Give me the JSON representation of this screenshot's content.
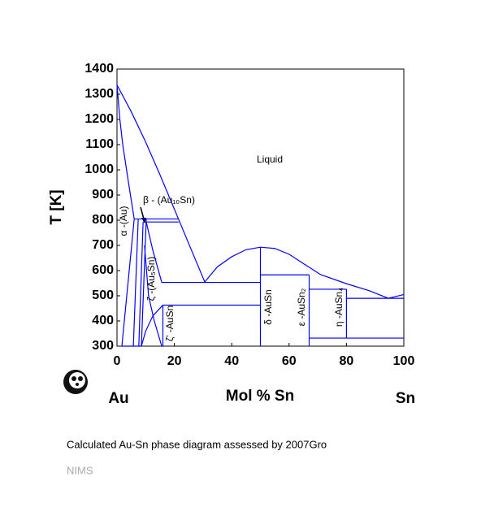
{
  "chart_data": {
    "type": "phase-diagram",
    "x_label": "Mol % Sn",
    "y_label": "T [K]",
    "left_element": "Au",
    "right_element": "Sn",
    "caption": "Calculated Au-Sn phase diagram assessed by 2007Gro",
    "source": "NIMS",
    "xlim": [
      0,
      100
    ],
    "ylim": [
      300,
      1400
    ],
    "xticks": [
      0,
      20,
      40,
      60,
      80,
      100
    ],
    "yticks": [
      300,
      400,
      500,
      600,
      700,
      800,
      900,
      1000,
      1100,
      1200,
      1300,
      1400
    ],
    "color": "#0000ff",
    "annotations": [
      "Liquid",
      "β - (Au₁₀Sn)",
      "α -(Au)",
      "ζ -(Au₅Sn)",
      "ζ' -AuSn",
      "δ -AuSn",
      "ε -AuSn₂",
      "η -AuSn₄"
    ],
    "boundaries": [
      {
        "x": [
          0,
          5,
          10,
          15,
          21.5,
          26,
          30.6
        ],
        "y": [
          1337,
          1230,
          1110,
          980,
          803,
          680,
          555
        ]
      },
      {
        "x": [
          0,
          1,
          2,
          4,
          6
        ],
        "y": [
          1337,
          1200,
          1100,
          950,
          805
        ]
      },
      {
        "x": [
          6,
          1.7
        ],
        "y": [
          805,
          300
        ]
      },
      {
        "x": [
          7.4,
          5.7
        ],
        "y": [
          805,
          300
        ]
      },
      {
        "x": [
          1.7,
          8.5
        ],
        "y": [
          300,
          300
        ]
      },
      {
        "x": [
          6,
          21.5
        ],
        "y": [
          805,
          805
        ]
      },
      {
        "x": [
          9.1,
          21.5
        ],
        "y": [
          793,
          793
        ]
      },
      {
        "x": [
          9.1,
          7.6
        ],
        "y": [
          793,
          300
        ]
      },
      {
        "x": [
          10.2,
          8.5
        ],
        "y": [
          805,
          300
        ]
      },
      {
        "x": [
          10.2,
          12.5,
          15.6
        ],
        "y": [
          793,
          680,
          553
        ]
      },
      {
        "x": [
          9.6,
          11,
          13,
          15.6
        ],
        "y": [
          700,
          500,
          400,
          300
        ]
      },
      {
        "x": [
          8.5,
          10,
          12.5,
          16
        ],
        "y": [
          300,
          360,
          420,
          463
        ]
      },
      {
        "x": [
          15.6,
          50
        ],
        "y": [
          553,
          553
        ]
      },
      {
        "x": [
          16,
          50
        ],
        "y": [
          463,
          463
        ]
      },
      {
        "x": [
          16,
          16
        ],
        "y": [
          463,
          300
        ]
      },
      {
        "x": [
          30.6,
          35,
          40,
          45,
          50,
          55,
          60,
          65,
          71
        ],
        "y": [
          555,
          615,
          655,
          683,
          693,
          688,
          665,
          628,
          584
        ]
      },
      {
        "x": [
          71,
          80,
          88,
          94.6,
          100
        ],
        "y": [
          584,
          548,
          520,
          490,
          505
        ]
      },
      {
        "x": [
          50,
          50
        ],
        "y": [
          693,
          300
        ]
      },
      {
        "x": [
          50,
          67
        ],
        "y": [
          583,
          583
        ]
      },
      {
        "x": [
          67,
          67
        ],
        "y": [
          583,
          300
        ]
      },
      {
        "x": [
          67,
          80
        ],
        "y": [
          526,
          526
        ]
      },
      {
        "x": [
          80,
          80
        ],
        "y": [
          526,
          332
        ]
      },
      {
        "x": [
          80,
          100
        ],
        "y": [
          490,
          490
        ]
      },
      {
        "x": [
          67,
          100
        ],
        "y": [
          332,
          332
        ]
      }
    ]
  }
}
